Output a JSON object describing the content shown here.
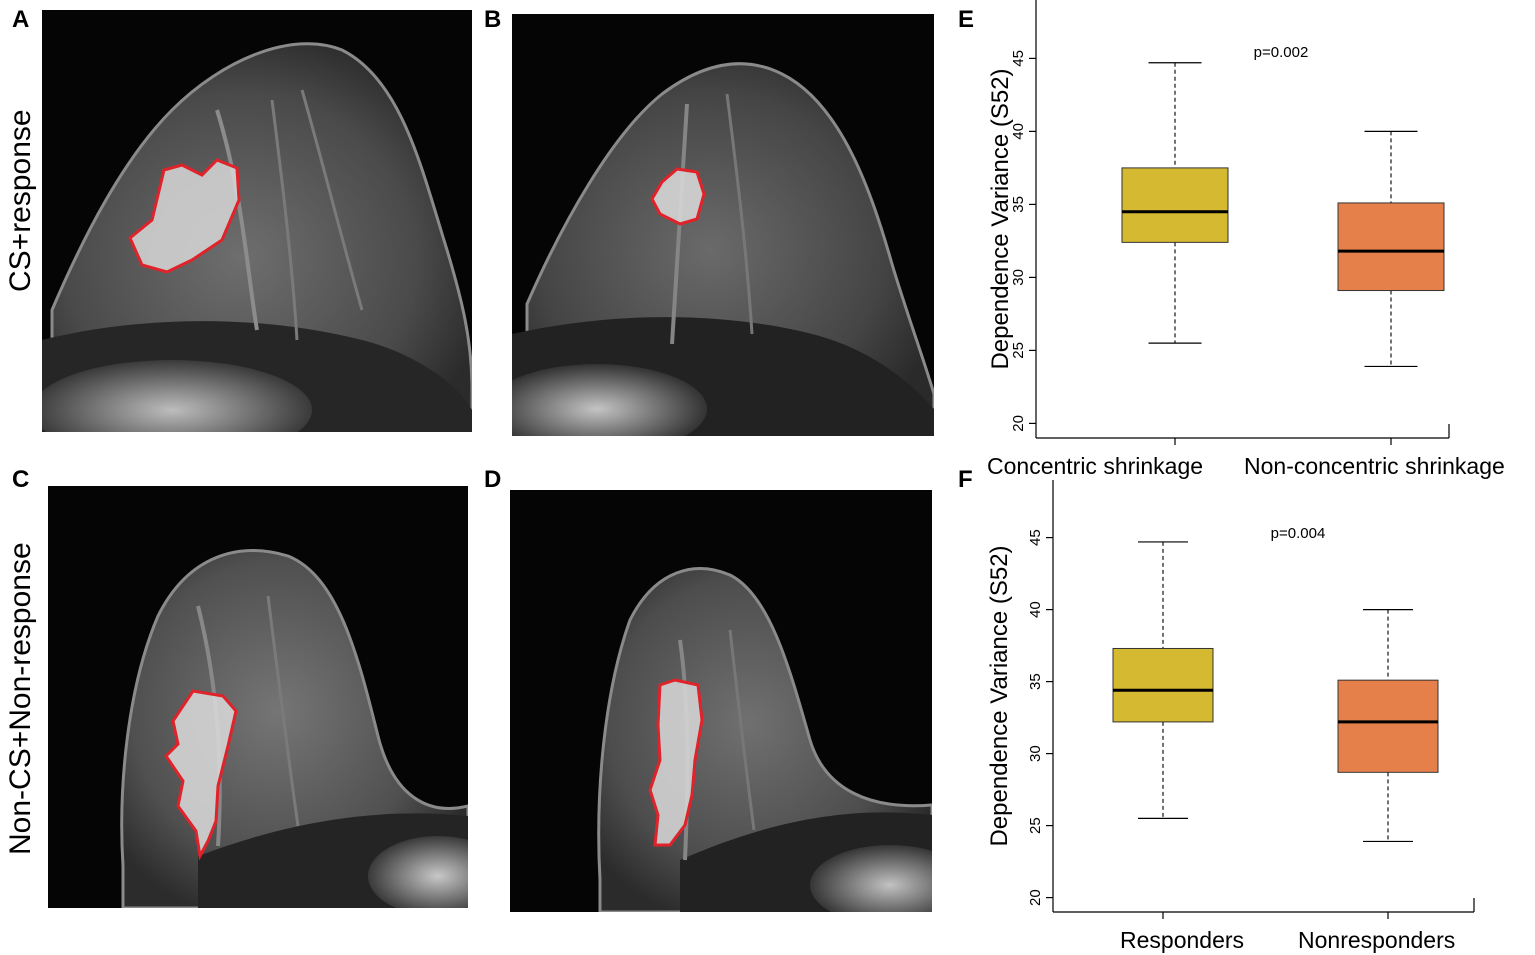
{
  "panels": {
    "A": "A",
    "B": "B",
    "C": "C",
    "D": "D",
    "E": "E",
    "F": "F"
  },
  "row_labels": {
    "top": "CS+response",
    "bottom": "Non-CS+Non-response"
  },
  "colors": {
    "contour": "#e0232a",
    "box_yellow": "#d4b931",
    "box_orange": "#e6804a"
  },
  "chart_data": [
    {
      "panel": "E",
      "type": "box",
      "ylabel": "Dependence Variance (S52)",
      "annotation": "p=0.002",
      "ylim": [
        19,
        49
      ],
      "yticks": [
        20,
        25,
        30,
        35,
        40,
        45
      ],
      "boxes": [
        {
          "category": "Concentric shrinkage",
          "whisker_low": 25.5,
          "q1": 32.4,
          "median": 34.5,
          "q3": 37.5,
          "whisker_high": 44.7,
          "color": "#d4b931"
        },
        {
          "category": "Non-concentric shrinkage",
          "whisker_low": 23.9,
          "q1": 29.1,
          "median": 31.8,
          "q3": 35.1,
          "whisker_high": 40.0,
          "color": "#e6804a"
        }
      ]
    },
    {
      "panel": "F",
      "type": "box",
      "ylabel": "Dependence Variance (S52)",
      "annotation": "p=0.004",
      "ylim": [
        19,
        49
      ],
      "yticks": [
        20,
        25,
        30,
        35,
        40,
        45
      ],
      "boxes": [
        {
          "category": "Responders",
          "whisker_low": 25.5,
          "q1": 32.2,
          "median": 34.4,
          "q3": 37.3,
          "whisker_high": 44.7,
          "color": "#d4b931"
        },
        {
          "category": "Nonresponders",
          "whisker_low": 23.9,
          "q1": 28.7,
          "median": 32.2,
          "q3": 35.1,
          "whisker_high": 40.0,
          "color": "#e6804a"
        }
      ]
    }
  ]
}
